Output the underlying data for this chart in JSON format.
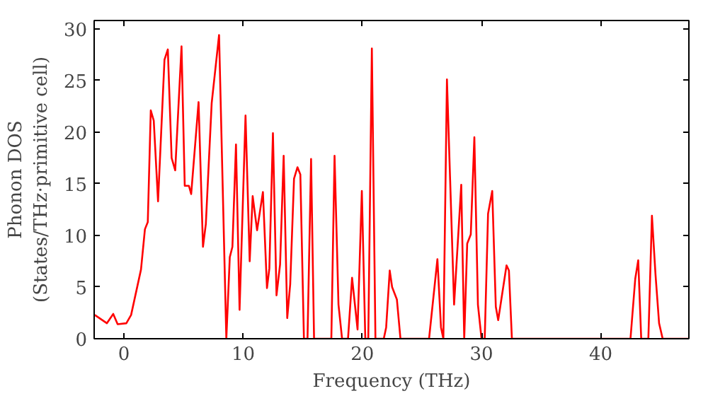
{
  "chart_data": {
    "type": "line",
    "xlabel": "Frequency (THz)",
    "ylabel": "Phonon DOS\n(States/THz·primitive cell)",
    "xlim": [
      -2.5,
      47.4
    ],
    "ylim": [
      0,
      30.8
    ],
    "xticks": [
      0,
      10,
      20,
      30,
      40
    ],
    "yticks": [
      0,
      5,
      10,
      15,
      20,
      25,
      30
    ],
    "grid": false,
    "series": [
      {
        "color": "#ff0000",
        "x": [
          -2.45,
          -1.43,
          -0.9,
          -0.53,
          0.2,
          0.6,
          1.43,
          1.76,
          2.0,
          2.25,
          2.5,
          2.86,
          3.4,
          3.68,
          4.0,
          4.3,
          4.83,
          5.1,
          5.45,
          5.64,
          6.26,
          6.63,
          6.87,
          7.36,
          7.98,
          8.59,
          8.88,
          9.1,
          9.4,
          9.7,
          10.2,
          10.55,
          10.8,
          11.17,
          11.66,
          12.0,
          12.2,
          12.5,
          12.8,
          13.1,
          13.4,
          13.7,
          13.95,
          14.27,
          14.56,
          14.8,
          15.1,
          15.4,
          15.7,
          15.95,
          17.4,
          17.67,
          18.0,
          18.3,
          18.8,
          19.14,
          19.6,
          19.96,
          20.25,
          20.5,
          20.8,
          21.1,
          21.8,
          22.0,
          22.3,
          22.5,
          22.9,
          23.2,
          25.6,
          26.3,
          26.6,
          26.8,
          27.1,
          27.7,
          28.3,
          28.55,
          28.8,
          29.1,
          29.4,
          29.7,
          30.0,
          30.27,
          30.55,
          30.9,
          31.2,
          31.4,
          32.1,
          32.3,
          32.55,
          42.5,
          42.9,
          43.15,
          43.4,
          44.0,
          44.3,
          44.6,
          44.9,
          45.2,
          47.4
        ],
        "values": [
          2.3,
          1.5,
          2.4,
          1.4,
          1.5,
          2.3,
          6.7,
          10.6,
          11.3,
          22.1,
          21.1,
          13.3,
          27.0,
          28.0,
          17.5,
          16.3,
          28.3,
          14.8,
          14.8,
          14.0,
          22.9,
          8.9,
          11.1,
          22.8,
          29.4,
          0,
          7.9,
          8.9,
          18.8,
          2.8,
          21.6,
          7.5,
          13.8,
          10.5,
          14.2,
          4.9,
          6.8,
          19.9,
          4.2,
          7.2,
          17.7,
          2.0,
          5.3,
          15.5,
          16.6,
          15.9,
          0,
          0,
          17.4,
          0,
          0,
          17.7,
          3.3,
          0,
          0,
          5.9,
          0.9,
          14.3,
          0,
          0,
          28.1,
          0,
          0,
          1.1,
          6.6,
          5.0,
          3.8,
          0,
          0,
          7.7,
          1.1,
          0,
          25.1,
          3.3,
          14.9,
          0,
          9.2,
          10.1,
          19.5,
          3.3,
          0,
          0,
          12.1,
          14.3,
          3.1,
          1.8,
          7.1,
          6.6,
          0,
          0,
          5.8,
          7.6,
          0,
          0,
          11.9,
          6.2,
          1.5,
          0,
          0
        ]
      }
    ]
  }
}
